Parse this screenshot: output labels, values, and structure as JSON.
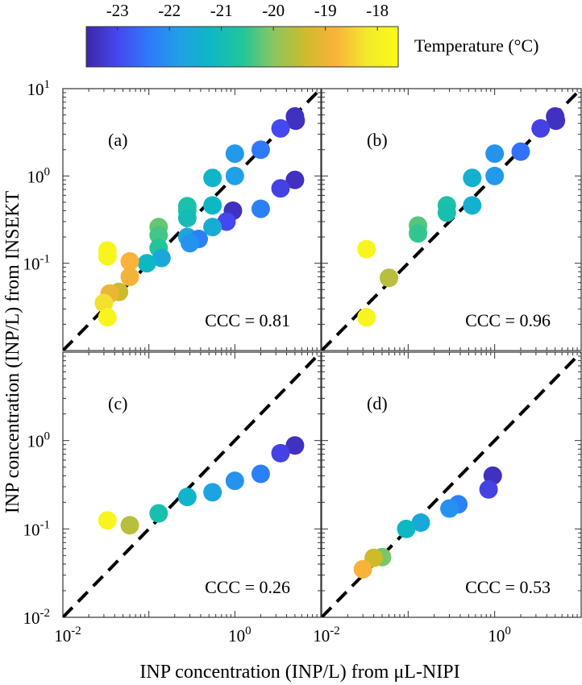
{
  "colorbar": {
    "label": "Temperature (°C)",
    "tick_labels": [
      "-23",
      "-22",
      "-21",
      "-20",
      "-19",
      "-18"
    ],
    "range": [
      -23.6,
      -17.6
    ],
    "colormap": [
      "#3e26a8",
      "#4547ef",
      "#2f79fb",
      "#20a0e6",
      "#0eb8c3",
      "#22c59a",
      "#8ac660",
      "#cdbb2c",
      "#fbb23a",
      "#f3e92d",
      "#f9fb15"
    ]
  },
  "axes_text": {
    "xlabel": "INP concentration (INP/L) from μL-NIPI",
    "ylabel": "INP concentration (INP/L) from INSEKT",
    "y_top_ticks": [
      {
        "base": "10",
        "exp": "1"
      },
      {
        "base": "10",
        "exp": "0"
      },
      {
        "base": "10",
        "exp": "-1"
      }
    ],
    "y_bottom_ticks": [
      {
        "base": "10",
        "exp": "0"
      },
      {
        "base": "10",
        "exp": "-1"
      },
      {
        "base": "10",
        "exp": "-2"
      }
    ],
    "x_ticks": [
      {
        "base": "10",
        "exp": "-2"
      },
      {
        "base": "10",
        "exp": "0"
      }
    ]
  },
  "chart_data": [
    {
      "type": "scatter",
      "panel_label": "(a)",
      "annotation": "CCC = 0.81",
      "xscale": "log",
      "yscale": "log",
      "xlim": [
        0.01,
        10
      ],
      "ylim": [
        0.01,
        10
      ],
      "reference_line": "1:1",
      "points": [
        {
          "x": 5.0,
          "y": 4.8,
          "t": -23.4
        },
        {
          "x": 5.1,
          "y": 4.3,
          "t": -23.4
        },
        {
          "x": 3.4,
          "y": 3.5,
          "t": -23.0
        },
        {
          "x": 2.0,
          "y": 2.0,
          "t": -22.4
        },
        {
          "x": 1.0,
          "y": 1.8,
          "t": -21.9
        },
        {
          "x": 1.0,
          "y": 1.0,
          "t": -21.8
        },
        {
          "x": 0.55,
          "y": 0.95,
          "t": -21.3
        },
        {
          "x": 5.0,
          "y": 0.9,
          "t": -23.4
        },
        {
          "x": 3.4,
          "y": 0.72,
          "t": -23.1
        },
        {
          "x": 2.0,
          "y": 0.42,
          "t": -22.3
        },
        {
          "x": 0.95,
          "y": 0.4,
          "t": -23.4
        },
        {
          "x": 0.8,
          "y": 0.3,
          "t": -23.0
        },
        {
          "x": 0.55,
          "y": 0.46,
          "t": -21.2
        },
        {
          "x": 0.55,
          "y": 0.26,
          "t": -21.5
        },
        {
          "x": 0.28,
          "y": 0.45,
          "t": -20.8
        },
        {
          "x": 0.28,
          "y": 0.4,
          "t": -20.8
        },
        {
          "x": 0.28,
          "y": 0.33,
          "t": -21.0
        },
        {
          "x": 0.28,
          "y": 0.2,
          "t": -21.6
        },
        {
          "x": 0.38,
          "y": 0.19,
          "t": -22.3
        },
        {
          "x": 0.3,
          "y": 0.17,
          "t": -22.0
        },
        {
          "x": 0.13,
          "y": 0.26,
          "t": -20.2
        },
        {
          "x": 0.13,
          "y": 0.21,
          "t": -20.4
        },
        {
          "x": 0.13,
          "y": 0.15,
          "t": -20.6
        },
        {
          "x": 0.14,
          "y": 0.115,
          "t": -21.6
        },
        {
          "x": 0.095,
          "y": 0.1,
          "t": -21.2
        },
        {
          "x": 0.06,
          "y": 0.105,
          "t": -18.8
        },
        {
          "x": 0.033,
          "y": 0.14,
          "t": -17.8
        },
        {
          "x": 0.033,
          "y": 0.12,
          "t": -17.8
        },
        {
          "x": 0.06,
          "y": 0.07,
          "t": -18.9
        },
        {
          "x": 0.045,
          "y": 0.047,
          "t": -19.4
        },
        {
          "x": 0.035,
          "y": 0.045,
          "t": -19.0
        },
        {
          "x": 0.03,
          "y": 0.035,
          "t": -18.3
        },
        {
          "x": 0.033,
          "y": 0.024,
          "t": -17.8
        }
      ]
    },
    {
      "type": "scatter",
      "panel_label": "(b)",
      "annotation": "CCC = 0.96",
      "xscale": "log",
      "yscale": "log",
      "xlim": [
        0.01,
        10
      ],
      "ylim": [
        0.01,
        10
      ],
      "reference_line": "1:1",
      "points": [
        {
          "x": 5.0,
          "y": 4.8,
          "t": -23.4
        },
        {
          "x": 5.1,
          "y": 4.3,
          "t": -23.4
        },
        {
          "x": 3.4,
          "y": 3.5,
          "t": -23.1
        },
        {
          "x": 2.0,
          "y": 1.9,
          "t": -22.5
        },
        {
          "x": 1.0,
          "y": 1.8,
          "t": -22.0
        },
        {
          "x": 1.0,
          "y": 1.0,
          "t": -21.9
        },
        {
          "x": 0.55,
          "y": 0.95,
          "t": -21.4
        },
        {
          "x": 0.55,
          "y": 0.46,
          "t": -21.4
        },
        {
          "x": 0.28,
          "y": 0.46,
          "t": -20.8
        },
        {
          "x": 0.28,
          "y": 0.38,
          "t": -20.9
        },
        {
          "x": 0.13,
          "y": 0.27,
          "t": -20.3
        },
        {
          "x": 0.13,
          "y": 0.22,
          "t": -20.5
        },
        {
          "x": 0.033,
          "y": 0.145,
          "t": -17.8
        },
        {
          "x": 0.06,
          "y": 0.068,
          "t": -19.6
        },
        {
          "x": 0.033,
          "y": 0.024,
          "t": -17.8
        }
      ]
    },
    {
      "type": "scatter",
      "panel_label": "(c)",
      "annotation": "CCC = 0.26",
      "xscale": "log",
      "yscale": "log",
      "xlim": [
        0.01,
        10
      ],
      "ylim": [
        0.01,
        10
      ],
      "reference_line": "1:1",
      "points": [
        {
          "x": 5.0,
          "y": 0.88,
          "t": -23.4
        },
        {
          "x": 3.4,
          "y": 0.72,
          "t": -23.1
        },
        {
          "x": 2.0,
          "y": 0.42,
          "t": -22.3
        },
        {
          "x": 1.0,
          "y": 0.35,
          "t": -22.0
        },
        {
          "x": 0.55,
          "y": 0.26,
          "t": -21.7
        },
        {
          "x": 0.28,
          "y": 0.23,
          "t": -21.3
        },
        {
          "x": 0.13,
          "y": 0.15,
          "t": -20.9
        },
        {
          "x": 0.06,
          "y": 0.11,
          "t": -19.6
        },
        {
          "x": 0.033,
          "y": 0.125,
          "t": -17.8
        }
      ]
    },
    {
      "type": "scatter",
      "panel_label": "(d)",
      "annotation": "CCC = 0.53",
      "xscale": "log",
      "yscale": "log",
      "xlim": [
        0.01,
        10
      ],
      "ylim": [
        0.01,
        10
      ],
      "reference_line": "1:1",
      "points": [
        {
          "x": 0.95,
          "y": 0.4,
          "t": -23.4
        },
        {
          "x": 0.85,
          "y": 0.28,
          "t": -23.1
        },
        {
          "x": 0.38,
          "y": 0.19,
          "t": -22.3
        },
        {
          "x": 0.3,
          "y": 0.17,
          "t": -22.0
        },
        {
          "x": 0.14,
          "y": 0.118,
          "t": -21.6
        },
        {
          "x": 0.095,
          "y": 0.1,
          "t": -21.2
        },
        {
          "x": 0.05,
          "y": 0.048,
          "t": -20.1
        },
        {
          "x": 0.04,
          "y": 0.047,
          "t": -19.4
        },
        {
          "x": 0.03,
          "y": 0.035,
          "t": -18.8
        }
      ]
    }
  ]
}
